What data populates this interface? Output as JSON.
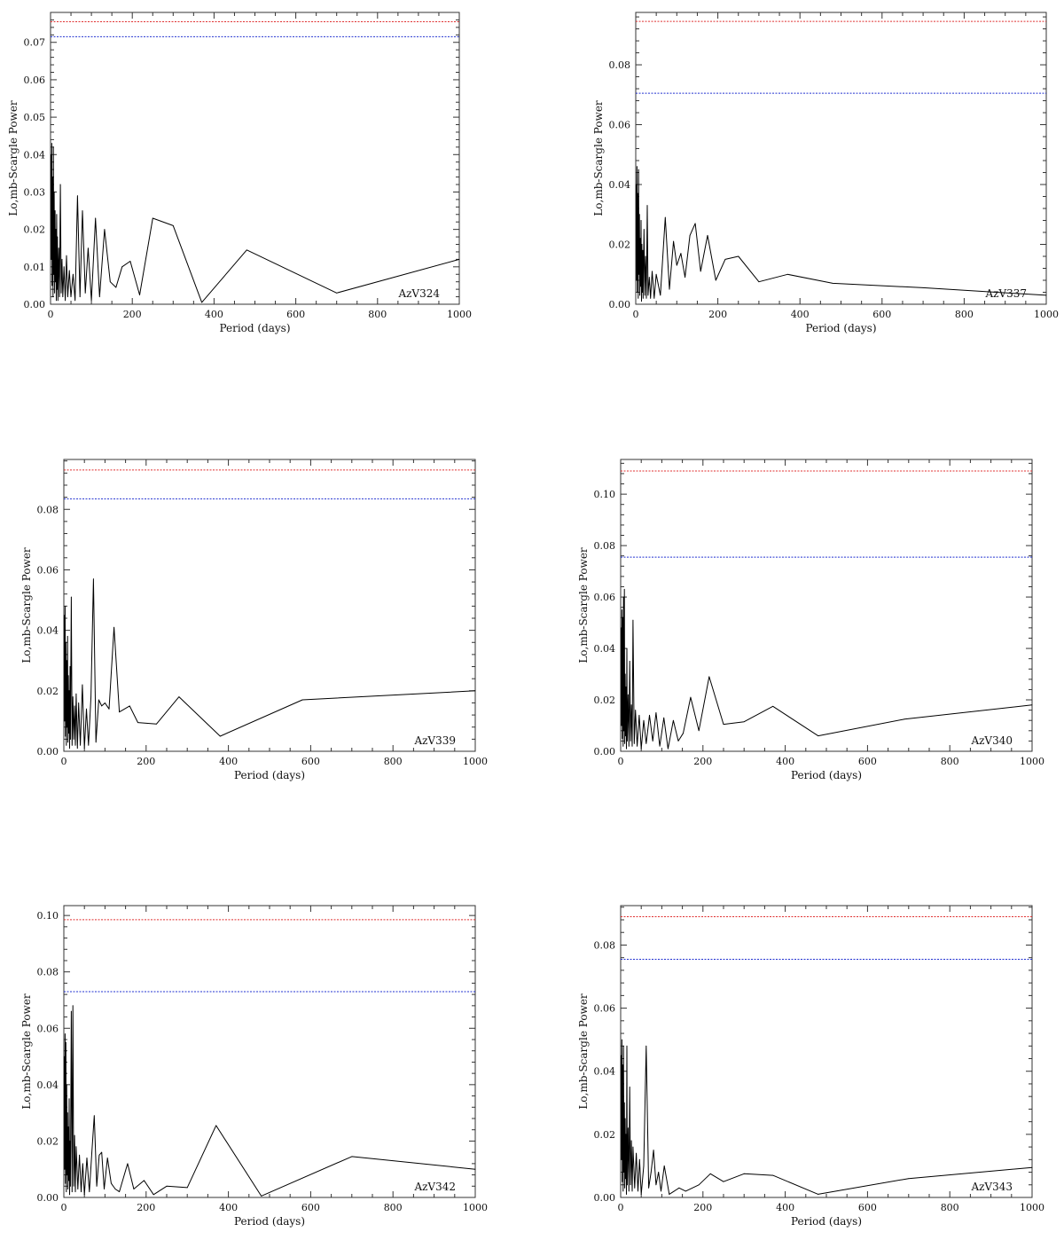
{
  "figure": {
    "xlabel": "Period (days)",
    "ylabel": "Lo,mb-Scargle Power",
    "colors": {
      "red_threshold": "#e03030",
      "blue_threshold": "#2030d0",
      "series": "#000000"
    }
  },
  "chart_data": [
    {
      "type": "line",
      "label": "AzV324",
      "xlabel": "Period (days)",
      "ylabel": "Lo,mb-Scargle Power",
      "xlim": [
        0,
        1000
      ],
      "ylim": [
        0,
        0.078
      ],
      "xticks": [
        0,
        200,
        400,
        600,
        800,
        1000
      ],
      "yticks": [
        0.0,
        0.01,
        0.02,
        0.03,
        0.04,
        0.05,
        0.06,
        0.07
      ],
      "ytick_labels": [
        "0.00",
        "0.01",
        "0.02",
        "0.03",
        "0.04",
        "0.05",
        "0.06",
        "0.07"
      ],
      "thresholds": {
        "red": 0.0755,
        "blue": 0.0715
      },
      "x": [
        1,
        2,
        3,
        4,
        5,
        6,
        7,
        8,
        9,
        10,
        11,
        12,
        13,
        14,
        15,
        16,
        17,
        18,
        20,
        22,
        24,
        26,
        28,
        30,
        33,
        36,
        39,
        42,
        46,
        50,
        55,
        60,
        66,
        72,
        78,
        85,
        92,
        100,
        110,
        120,
        132,
        146,
        160,
        175,
        195,
        218,
        250,
        300,
        370,
        480,
        700,
        1000
      ],
      "y": [
        0.04,
        0.012,
        0.043,
        0.005,
        0.034,
        0.002,
        0.042,
        0.008,
        0.03,
        0.003,
        0.025,
        0.006,
        0.02,
        0.001,
        0.024,
        0.004,
        0.018,
        0.001,
        0.015,
        0.002,
        0.032,
        0.003,
        0.012,
        0.002,
        0.01,
        0.001,
        0.013,
        0.002,
        0.009,
        0.002,
        0.008,
        0.001,
        0.029,
        0.002,
        0.025,
        0.003,
        0.015,
        0.001,
        0.023,
        0.002,
        0.02,
        0.006,
        0.0045,
        0.01,
        0.0115,
        0.0025,
        0.023,
        0.021,
        0.0005,
        0.0145,
        0.003,
        0.012
      ]
    },
    {
      "type": "line",
      "label": "AzV337",
      "xlabel": "Period (days)",
      "ylabel": "Lo,mb-Scargle Power",
      "xlim": [
        0,
        1000
      ],
      "ylim": [
        0,
        0.0975
      ],
      "xticks": [
        0,
        200,
        400,
        600,
        800,
        1000
      ],
      "yticks": [
        0.0,
        0.02,
        0.04,
        0.06,
        0.08
      ],
      "ytick_labels": [
        "0.00",
        "0.02",
        "0.04",
        "0.06",
        "0.08"
      ],
      "thresholds": {
        "red": 0.0945,
        "blue": 0.0705
      },
      "x": [
        1,
        2,
        3,
        4,
        5,
        6,
        7,
        8,
        9,
        10,
        11,
        12,
        13,
        14,
        15,
        16,
        17,
        18,
        20,
        22,
        24,
        26,
        28,
        30,
        33,
        36,
        40,
        45,
        50,
        60,
        72,
        82,
        92,
        100,
        110,
        120,
        132,
        145,
        158,
        175,
        195,
        218,
        250,
        300,
        370,
        480,
        700,
        1000
      ],
      "y": [
        0.04,
        0.008,
        0.046,
        0.004,
        0.037,
        0.002,
        0.045,
        0.01,
        0.03,
        0.003,
        0.022,
        0.006,
        0.028,
        0.001,
        0.02,
        0.004,
        0.018,
        0.002,
        0.025,
        0.003,
        0.016,
        0.002,
        0.033,
        0.003,
        0.009,
        0.002,
        0.011,
        0.002,
        0.01,
        0.003,
        0.029,
        0.005,
        0.021,
        0.013,
        0.017,
        0.009,
        0.023,
        0.027,
        0.011,
        0.023,
        0.008,
        0.015,
        0.016,
        0.0075,
        0.01,
        0.007,
        0.0055,
        0.003
      ]
    },
    {
      "type": "line",
      "label": "AzV339",
      "xlabel": "Period (days)",
      "ylabel": "Lo,mb-Scargle Power",
      "xlim": [
        0,
        1000
      ],
      "ylim": [
        0,
        0.0965
      ],
      "xticks": [
        0,
        200,
        400,
        600,
        800,
        1000
      ],
      "yticks": [
        0.0,
        0.02,
        0.04,
        0.06,
        0.08
      ],
      "ytick_labels": [
        "0.00",
        "0.02",
        "0.04",
        "0.06",
        "0.08"
      ],
      "thresholds": {
        "red": 0.093,
        "blue": 0.0835
      },
      "x": [
        1,
        2,
        3,
        4,
        5,
        6,
        7,
        8,
        9,
        10,
        11,
        12,
        13,
        14,
        15,
        16,
        18,
        20,
        22,
        24,
        26,
        28,
        30,
        33,
        36,
        40,
        45,
        50,
        55,
        60,
        66,
        72,
        78,
        85,
        92,
        100,
        110,
        122,
        135,
        160,
        180,
        225,
        280,
        380,
        580,
        1000
      ],
      "y": [
        0.045,
        0.01,
        0.048,
        0.005,
        0.036,
        0.002,
        0.03,
        0.008,
        0.038,
        0.003,
        0.025,
        0.006,
        0.02,
        0.001,
        0.028,
        0.004,
        0.051,
        0.002,
        0.018,
        0.004,
        0.015,
        0.002,
        0.019,
        0.001,
        0.016,
        0.002,
        0.022,
        0.001,
        0.014,
        0.002,
        0.018,
        0.057,
        0.003,
        0.017,
        0.015,
        0.016,
        0.014,
        0.041,
        0.013,
        0.015,
        0.0095,
        0.009,
        0.018,
        0.005,
        0.017,
        0.02
      ]
    },
    {
      "type": "line",
      "label": "AzV340",
      "xlabel": "Period (days)",
      "ylabel": "Lo,mb-Scargle Power",
      "xlim": [
        0,
        1000
      ],
      "ylim": [
        0,
        0.1135
      ],
      "xticks": [
        0,
        200,
        400,
        600,
        800,
        1000
      ],
      "yticks": [
        0.0,
        0.02,
        0.04,
        0.06,
        0.08,
        0.1
      ],
      "ytick_labels": [
        "0.00",
        "0.02",
        "0.04",
        "0.06",
        "0.08",
        "0.10"
      ],
      "thresholds": {
        "red": 0.109,
        "blue": 0.0755
      },
      "x": [
        1,
        2,
        3,
        4,
        5,
        6,
        7,
        8,
        9,
        10,
        11,
        12,
        13,
        14,
        15,
        16,
        18,
        20,
        22,
        24,
        26,
        28,
        30,
        33,
        36,
        40,
        45,
        50,
        56,
        62,
        70,
        78,
        86,
        95,
        105,
        115,
        128,
        140,
        152,
        170,
        190,
        215,
        250,
        300,
        370,
        480,
        690,
        1000
      ],
      "y": [
        0.048,
        0.01,
        0.055,
        0.005,
        0.052,
        0.002,
        0.06,
        0.008,
        0.063,
        0.003,
        0.03,
        0.006,
        0.025,
        0.001,
        0.04,
        0.004,
        0.022,
        0.002,
        0.035,
        0.004,
        0.018,
        0.002,
        0.051,
        0.003,
        0.016,
        0.002,
        0.014,
        0.001,
        0.012,
        0.003,
        0.014,
        0.004,
        0.015,
        0.002,
        0.013,
        0.001,
        0.012,
        0.004,
        0.007,
        0.021,
        0.008,
        0.029,
        0.0105,
        0.0115,
        0.0175,
        0.006,
        0.0125,
        0.018
      ]
    },
    {
      "type": "line",
      "label": "AzV342",
      "xlabel": "Period (days)",
      "ylabel": "Lo,mb-Scargle Power",
      "xlim": [
        0,
        1000
      ],
      "ylim": [
        0,
        0.1035
      ],
      "xticks": [
        0,
        200,
        400,
        600,
        800,
        1000
      ],
      "yticks": [
        0.0,
        0.02,
        0.04,
        0.06,
        0.08,
        0.1
      ],
      "ytick_labels": [
        "0.00",
        "0.02",
        "0.04",
        "0.06",
        "0.08",
        "0.10"
      ],
      "thresholds": {
        "red": 0.0985,
        "blue": 0.073
      },
      "x": [
        1,
        2,
        3,
        4,
        5,
        6,
        7,
        8,
        9,
        10,
        11,
        12,
        13,
        14,
        15,
        16,
        18,
        20,
        22,
        24,
        26,
        28,
        30,
        34,
        38,
        42,
        46,
        50,
        56,
        62,
        68,
        74,
        80,
        86,
        92,
        98,
        106,
        115,
        125,
        135,
        155,
        170,
        195,
        218,
        250,
        300,
        370,
        480,
        700,
        1000
      ],
      "y": [
        0.05,
        0.01,
        0.058,
        0.005,
        0.055,
        0.002,
        0.04,
        0.008,
        0.03,
        0.003,
        0.025,
        0.006,
        0.035,
        0.001,
        0.02,
        0.004,
        0.066,
        0.002,
        0.068,
        0.004,
        0.022,
        0.002,
        0.018,
        0.003,
        0.015,
        0.002,
        0.012,
        0.001,
        0.014,
        0.002,
        0.016,
        0.029,
        0.004,
        0.015,
        0.016,
        0.003,
        0.014,
        0.005,
        0.003,
        0.002,
        0.012,
        0.003,
        0.006,
        0.001,
        0.004,
        0.0035,
        0.0255,
        0.0005,
        0.0145,
        0.01
      ]
    },
    {
      "type": "line",
      "label": "AzV343",
      "xlabel": "Period (days)",
      "ylabel": "Lo,mb-Scargle Power",
      "xlim": [
        0,
        1000
      ],
      "ylim": [
        0,
        0.0925
      ],
      "xticks": [
        0,
        200,
        400,
        600,
        800,
        1000
      ],
      "yticks": [
        0.0,
        0.02,
        0.04,
        0.06,
        0.08
      ],
      "ytick_labels": [
        "0.00",
        "0.02",
        "0.04",
        "0.06",
        "0.08"
      ],
      "thresholds": {
        "red": 0.089,
        "blue": 0.0755
      },
      "x": [
        1,
        2,
        3,
        4,
        5,
        6,
        7,
        8,
        9,
        10,
        11,
        12,
        13,
        14,
        15,
        16,
        18,
        20,
        22,
        24,
        26,
        28,
        30,
        34,
        38,
        42,
        46,
        50,
        56,
        62,
        68,
        74,
        80,
        86,
        92,
        98,
        106,
        118,
        130,
        142,
        158,
        190,
        218,
        250,
        300,
        370,
        480,
        700,
        1000
      ],
      "y": [
        0.045,
        0.012,
        0.05,
        0.005,
        0.042,
        0.002,
        0.048,
        0.008,
        0.03,
        0.003,
        0.025,
        0.006,
        0.02,
        0.001,
        0.048,
        0.004,
        0.022,
        0.002,
        0.035,
        0.004,
        0.018,
        0.002,
        0.016,
        0.003,
        0.014,
        0.002,
        0.012,
        0.001,
        0.01,
        0.048,
        0.003,
        0.008,
        0.015,
        0.004,
        0.008,
        0.002,
        0.01,
        0.001,
        0.002,
        0.003,
        0.002,
        0.004,
        0.0075,
        0.005,
        0.0075,
        0.007,
        0.001,
        0.006,
        0.0095
      ]
    }
  ]
}
